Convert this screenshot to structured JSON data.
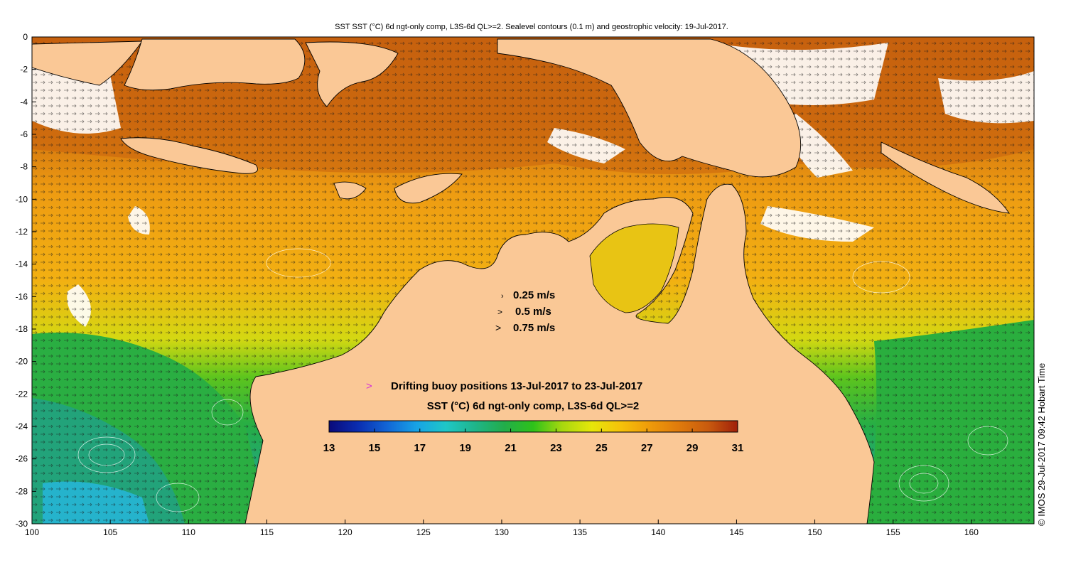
{
  "title": "SST SST (°C) 6d ngt-only comp, L3S-6d QL>=2. Sealevel contours (0.1 m) and geostrophic velocity: 19-Jul-2017.",
  "axes": {
    "x_ticks": [
      "100",
      "105",
      "110",
      "115",
      "120",
      "125",
      "130",
      "135",
      "140",
      "145",
      "150",
      "155",
      "160"
    ],
    "x_range": [
      100,
      164
    ],
    "y_ticks": [
      "0",
      "-2",
      "-4",
      "-6",
      "-8",
      "-10",
      "-12",
      "-14",
      "-16",
      "-18",
      "-20",
      "-22",
      "-24",
      "-26",
      "-28",
      "-30"
    ],
    "y_range": [
      -30,
      0
    ]
  },
  "velocity_legend": [
    {
      "glyph": "›",
      "label": "0.25 m/s"
    },
    {
      "glyph": ">",
      "label": "0.5 m/s"
    },
    {
      "glyph": ">",
      "label": "0.75 m/s"
    }
  ],
  "buoy_legend": {
    "glyph": ">",
    "label": "Drifting buoy positions 13-Jul-2017 to 23-Jul-2017",
    "color": "#d633d6"
  },
  "colorbar": {
    "title": "SST (°C) 6d ngt-only comp, L3S-6d QL>=2",
    "ticks": [
      "13",
      "15",
      "17",
      "19",
      "21",
      "23",
      "25",
      "27",
      "29",
      "31"
    ],
    "range": [
      13,
      31
    ],
    "colors": [
      "#0a0a7a",
      "#0a2db0",
      "#1266d6",
      "#17a3e6",
      "#1fc7c7",
      "#1fb58a",
      "#22ad4a",
      "#2ec21a",
      "#a8d80f",
      "#e6e60a",
      "#f5c20a",
      "#ee9a0a",
      "#df7a0c",
      "#c85a0e",
      "#a0200a"
    ]
  },
  "credit": "© IMOS 29-Jul-2017 09:42 Hobart Time",
  "colors": {
    "land": "#fac896",
    "warm": "#c8640f",
    "orange": "#ee9a10",
    "yellow": "#d8d20e",
    "green": "#2eb13a",
    "cyan": "#21b0cc",
    "nodata": "#ffffff"
  }
}
